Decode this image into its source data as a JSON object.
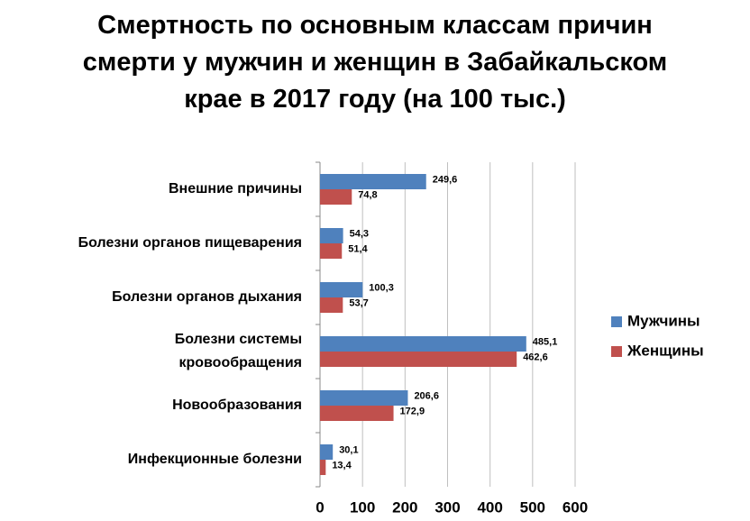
{
  "chart_data": {
    "type": "hbar",
    "title": "Смертность по основным классам причин\nсмерти у мужчин и женщин в Забайкальском\nкрае в 2017 году (на 100 тыс.)",
    "categories": [
      "Внешние причины",
      "Болезни органов  пищеварения",
      "Болезни органов  дыхания",
      "Болезни системы\nкровообращения",
      "Новообразования",
      "Инфекционные болезни"
    ],
    "series": [
      {
        "name": "Мужчины",
        "color": "#4f81bd",
        "values": [
          249.6,
          54.3,
          100.3,
          485.1,
          206.6,
          30.1
        ],
        "value_labels": [
          "249,6",
          "54,3",
          "100,3",
          "485,1",
          "206,6",
          "30,1"
        ]
      },
      {
        "name": "Женщины",
        "color": "#c0504d",
        "values": [
          74.8,
          51.4,
          53.7,
          462.6,
          172.9,
          13.4
        ],
        "value_labels": [
          "74,8",
          "51,4",
          "53,7",
          "462,6",
          "172,9",
          "13,4"
        ]
      }
    ],
    "xlim": [
      0,
      600
    ],
    "xticks": [
      0,
      100,
      200,
      300,
      400,
      500,
      600
    ],
    "grid": true,
    "legend": "right"
  }
}
